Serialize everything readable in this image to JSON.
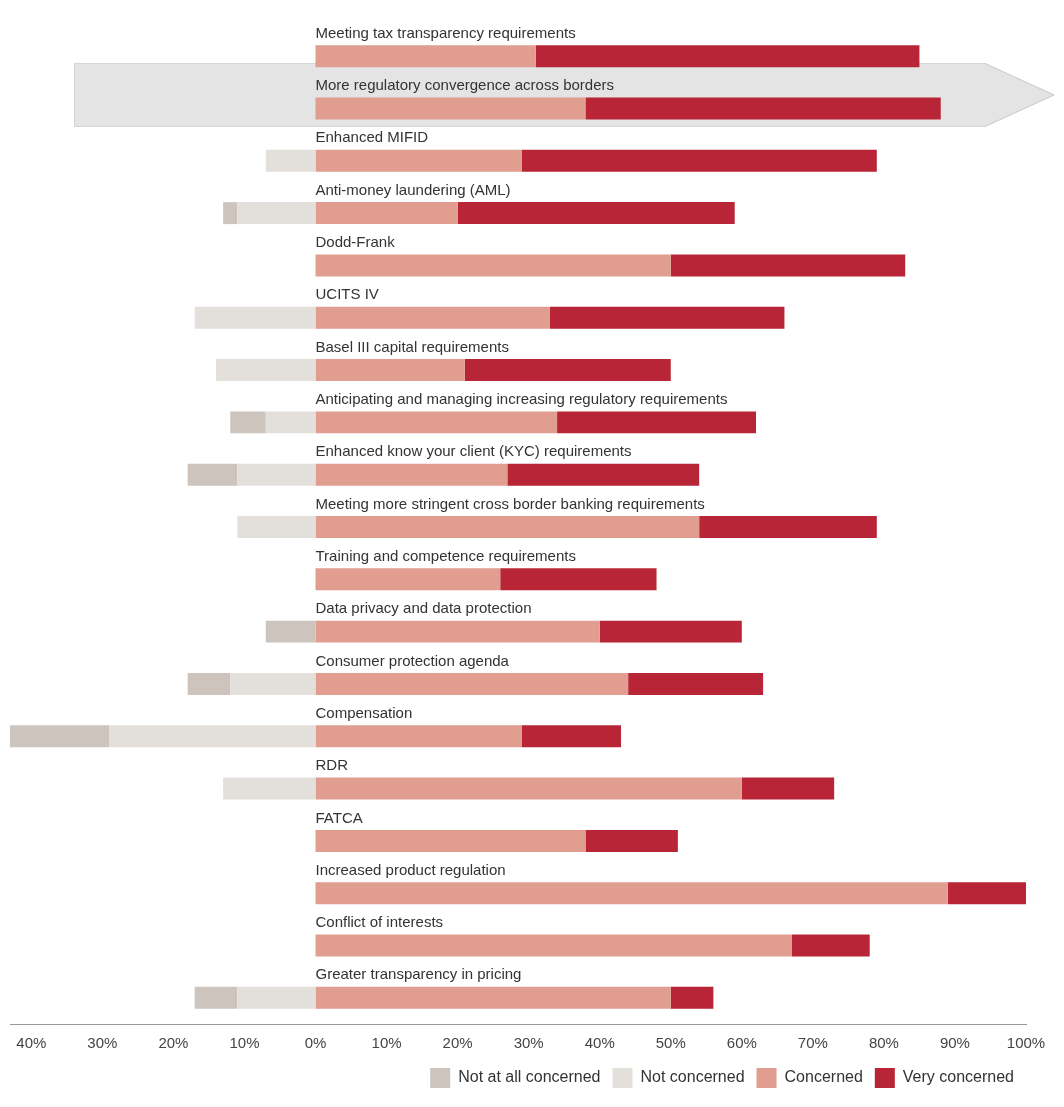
{
  "chart_data": {
    "type": "bar",
    "orientation": "horizontal",
    "stacked": true,
    "categories": [
      "Meeting tax transparency requirements",
      "More regulatory convergence across borders",
      "Enhanced MIFID",
      "Anti-money laundering (AML)",
      "Dodd-Frank",
      "UCITS IV",
      "Basel III capital requirements",
      "Anticipating and managing increasing regulatory requirements",
      "Enhanced know your client (KYC) requirements",
      "Meeting more stringent cross border banking requirements",
      "Training and competence requirements",
      "Data privacy and data protection",
      "Consumer protection agenda",
      "Compensation",
      "RDR",
      "FATCA",
      "Increased product regulation",
      "Conflict of interests",
      "Greater transparency in pricing"
    ],
    "series": [
      {
        "name": "Not concerned",
        "color": "#e3dfdb",
        "values": [
          0,
          null,
          -7,
          -11,
          0,
          -17,
          -14,
          -7,
          -11,
          -11,
          0,
          0,
          -12,
          -29,
          -13,
          0,
          0,
          0,
          -11
        ]
      },
      {
        "name": "Not at all concerned",
        "color": "#cdc5bd",
        "values": [
          0,
          null,
          0,
          -2,
          0,
          0,
          0,
          -5,
          -7,
          0,
          0,
          -7,
          -6,
          -14,
          0,
          0,
          0,
          0,
          -6
        ]
      },
      {
        "name": "Concerned",
        "color": "#e09d90",
        "values": [
          31,
          38,
          29,
          20,
          50,
          33,
          21,
          34,
          27,
          54,
          26,
          40,
          44,
          29,
          60,
          38,
          89,
          67,
          50
        ]
      },
      {
        "name": "Very concerned",
        "color": "#b82537",
        "values": [
          54,
          50,
          50,
          39,
          33,
          33,
          29,
          28,
          27,
          25,
          22,
          20,
          19,
          14,
          13,
          13,
          11,
          11,
          6
        ]
      }
    ],
    "xlim": [
      -43,
      100
    ],
    "xticks": [
      {
        "value": -40,
        "label": "40%"
      },
      {
        "value": -30,
        "label": "30%"
      },
      {
        "value": -20,
        "label": "20%"
      },
      {
        "value": -10,
        "label": "10%"
      },
      {
        "value": 0,
        "label": "0%"
      },
      {
        "value": 10,
        "label": "10%"
      },
      {
        "value": 20,
        "label": "20%"
      },
      {
        "value": 30,
        "label": "30%"
      },
      {
        "value": 40,
        "label": "40%"
      },
      {
        "value": 50,
        "label": "50%"
      },
      {
        "value": 60,
        "label": "60%"
      },
      {
        "value": 70,
        "label": "70%"
      },
      {
        "value": 80,
        "label": "80%"
      },
      {
        "value": 90,
        "label": "90%"
      },
      {
        "value": 100,
        "label": "100%"
      }
    ],
    "grid": false,
    "legend": "bottom right"
  }
}
